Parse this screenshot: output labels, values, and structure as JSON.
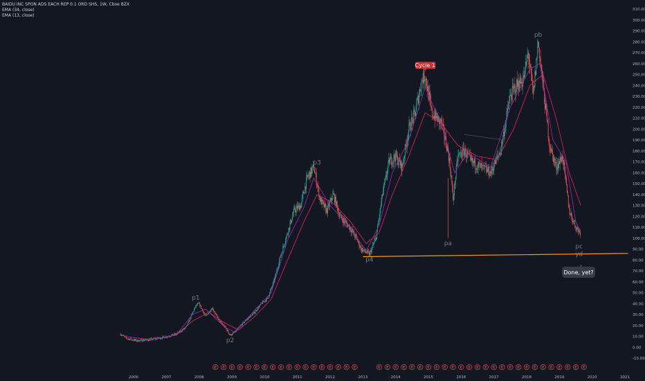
{
  "header": {
    "symbol_line": "BAIDU INC SPON ADS EACH REP 0.1 ORD SHS, 1W, Cboe BZX",
    "ema1_label": "EMA (34, close)",
    "ema2_label": "EMA (13, close)"
  },
  "colors": {
    "background": "#131722",
    "candle_up": "#26a69a",
    "candle_down": "#ef5350",
    "ema34": "#e91e63",
    "ema13": "#9c27b0",
    "support": "#ff9800",
    "trendline": "#4a5058",
    "tag": "#d32f2f",
    "callout": "#363a45"
  },
  "chart_data": {
    "type": "candlestick",
    "title": "BAIDU INC SPON ADS EACH REP 0.1 ORD SHS, 1W, Cboe BZX",
    "xlabel": "",
    "ylabel": "",
    "xlim": [
      2005.5,
      2021.1
    ],
    "ylim": [
      -20,
      315
    ],
    "y_ticks": [
      -10,
      0,
      10,
      20,
      30,
      40,
      50,
      60,
      70,
      80,
      90,
      100,
      110,
      120,
      130,
      140,
      150,
      160,
      170,
      180,
      190,
      200,
      210,
      220,
      230,
      240,
      250,
      260,
      270,
      280,
      290,
      300,
      310
    ],
    "x_ticks": [
      "2006",
      "2007",
      "2008",
      "2009",
      "2010",
      "2011",
      "2012",
      "2013",
      "2014",
      "2015",
      "2016",
      "2017",
      "2018",
      "2019",
      "2020",
      "2021"
    ],
    "x_tick_years": [
      2006,
      2007,
      2008,
      2009,
      2010,
      2011,
      2012,
      2013,
      2014,
      2015,
      2016,
      2017,
      2018,
      2019,
      2020,
      2021
    ],
    "price_path": [
      [
        2005.6,
        12
      ],
      [
        2005.8,
        8
      ],
      [
        2006.1,
        6
      ],
      [
        2006.5,
        7
      ],
      [
        2006.9,
        9
      ],
      [
        2007.3,
        12
      ],
      [
        2007.6,
        18
      ],
      [
        2007.9,
        38
      ],
      [
        2008.0,
        40
      ],
      [
        2008.2,
        28
      ],
      [
        2008.4,
        36
      ],
      [
        2008.6,
        25
      ],
      [
        2008.8,
        18
      ],
      [
        2008.95,
        11
      ],
      [
        2009.1,
        14
      ],
      [
        2009.4,
        24
      ],
      [
        2009.7,
        32
      ],
      [
        2009.9,
        40
      ],
      [
        2010.1,
        45
      ],
      [
        2010.3,
        62
      ],
      [
        2010.5,
        85
      ],
      [
        2010.7,
        105
      ],
      [
        2010.9,
        125
      ],
      [
        2011.1,
        130
      ],
      [
        2011.3,
        155
      ],
      [
        2011.5,
        165
      ],
      [
        2011.7,
        135
      ],
      [
        2011.9,
        125
      ],
      [
        2012.1,
        140
      ],
      [
        2012.3,
        120
      ],
      [
        2012.6,
        110
      ],
      [
        2012.8,
        100
      ],
      [
        2012.95,
        90
      ],
      [
        2013.2,
        85
      ],
      [
        2013.4,
        100
      ],
      [
        2013.6,
        140
      ],
      [
        2013.8,
        170
      ],
      [
        2014.0,
        175
      ],
      [
        2014.2,
        165
      ],
      [
        2014.4,
        200
      ],
      [
        2014.6,
        215
      ],
      [
        2014.8,
        245
      ],
      [
        2014.9,
        250
      ],
      [
        2015.1,
        215
      ],
      [
        2015.4,
        205
      ],
      [
        2015.6,
        180
      ],
      [
        2015.7,
        155
      ],
      [
        2015.75,
        135
      ],
      [
        2015.9,
        175
      ],
      [
        2016.1,
        180
      ],
      [
        2016.3,
        170
      ],
      [
        2016.6,
        165
      ],
      [
        2016.9,
        160
      ],
      [
        2017.2,
        180
      ],
      [
        2017.5,
        230
      ],
      [
        2017.7,
        240
      ],
      [
        2017.9,
        245
      ],
      [
        2018.05,
        270
      ],
      [
        2018.2,
        230
      ],
      [
        2018.35,
        280
      ],
      [
        2018.5,
        240
      ],
      [
        2018.7,
        185
      ],
      [
        2018.9,
        165
      ],
      [
        2019.1,
        175
      ],
      [
        2019.3,
        125
      ],
      [
        2019.5,
        110
      ],
      [
        2019.65,
        105
      ]
    ],
    "ema34_path": [
      [
        2005.7,
        10
      ],
      [
        2006.5,
        7
      ],
      [
        2007.3,
        11
      ],
      [
        2007.8,
        24
      ],
      [
        2008.3,
        32
      ],
      [
        2008.8,
        22
      ],
      [
        2009.2,
        16
      ],
      [
        2009.7,
        28
      ],
      [
        2010.2,
        44
      ],
      [
        2010.7,
        80
      ],
      [
        2011.2,
        115
      ],
      [
        2011.6,
        140
      ],
      [
        2012.1,
        132
      ],
      [
        2012.6,
        116
      ],
      [
        2013.1,
        95
      ],
      [
        2013.5,
        105
      ],
      [
        2013.9,
        140
      ],
      [
        2014.4,
        175
      ],
      [
        2014.9,
        215
      ],
      [
        2015.4,
        205
      ],
      [
        2015.9,
        185
      ],
      [
        2016.5,
        175
      ],
      [
        2017.1,
        172
      ],
      [
        2017.6,
        200
      ],
      [
        2018.1,
        240
      ],
      [
        2018.5,
        250
      ],
      [
        2018.9,
        210
      ],
      [
        2019.3,
        160
      ],
      [
        2019.65,
        130
      ]
    ],
    "ema13_path": [
      [
        2005.7,
        10
      ],
      [
        2006.5,
        7
      ],
      [
        2007.3,
        11
      ],
      [
        2007.8,
        30
      ],
      [
        2008.2,
        35
      ],
      [
        2008.8,
        18
      ],
      [
        2009.1,
        14
      ],
      [
        2009.7,
        34
      ],
      [
        2010.2,
        50
      ],
      [
        2010.7,
        98
      ],
      [
        2011.2,
        128
      ],
      [
        2011.5,
        155
      ],
      [
        2012.0,
        130
      ],
      [
        2012.6,
        110
      ],
      [
        2013.1,
        88
      ],
      [
        2013.5,
        112
      ],
      [
        2013.9,
        160
      ],
      [
        2014.4,
        190
      ],
      [
        2014.9,
        238
      ],
      [
        2015.4,
        205
      ],
      [
        2015.8,
        160
      ],
      [
        2016.2,
        178
      ],
      [
        2016.9,
        165
      ],
      [
        2017.5,
        220
      ],
      [
        2018.1,
        255
      ],
      [
        2018.4,
        260
      ],
      [
        2018.8,
        190
      ],
      [
        2019.2,
        170
      ],
      [
        2019.5,
        115
      ],
      [
        2019.65,
        105
      ]
    ],
    "support_line": {
      "from": [
        2013.0,
        83
      ],
      "to": [
        2021.1,
        86
      ]
    },
    "trendline": {
      "from": [
        2016.1,
        195
      ],
      "to": [
        2017.3,
        190
      ]
    },
    "pa_wick": {
      "x": 2015.6,
      "low": 100,
      "high": 155
    },
    "annotations": [
      {
        "label": "p1",
        "x": 2007.9,
        "y": 41,
        "pos": "above"
      },
      {
        "label": "p2",
        "x": 2008.95,
        "y": 11,
        "pos": "below"
      },
      {
        "label": "p3",
        "x": 2011.6,
        "y": 165,
        "pos": "above"
      },
      {
        "label": "p4",
        "x": 2013.2,
        "y": 85,
        "pos": "below"
      },
      {
        "label": "pa",
        "x": 2015.6,
        "y": 100,
        "pos": "below"
      },
      {
        "label": "pb",
        "x": 2018.35,
        "y": 282,
        "pos": "above"
      },
      {
        "label": "pc",
        "x": 2019.6,
        "y": 97,
        "pos": "below"
      },
      {
        "label": "yd",
        "x": 2019.6,
        "y": 90,
        "pos": "below"
      }
    ],
    "tag": {
      "label": "Cycle 1",
      "x": 2014.9,
      "y": 252
    },
    "callout": {
      "label": "Done, yet?",
      "x": 2019.65,
      "y": 84
    },
    "event_markers": {
      "label": "E",
      "x": [
        2008.5,
        2008.75,
        2009.0,
        2009.25,
        2009.5,
        2009.75,
        2010.0,
        2010.25,
        2010.5,
        2010.75,
        2011.0,
        2011.25,
        2011.5,
        2011.75,
        2012.0,
        2012.25,
        2012.5,
        2012.75,
        2013.5,
        2013.75,
        2014.0,
        2014.25,
        2014.5,
        2014.75,
        2015.0,
        2015.25,
        2015.5,
        2015.75,
        2016.0,
        2016.25,
        2016.5,
        2016.75,
        2017.0,
        2017.25,
        2017.5,
        2017.75,
        2018.0,
        2018.25,
        2018.5,
        2018.75,
        2019.0,
        2019.25,
        2019.5,
        2019.75
      ]
    }
  }
}
